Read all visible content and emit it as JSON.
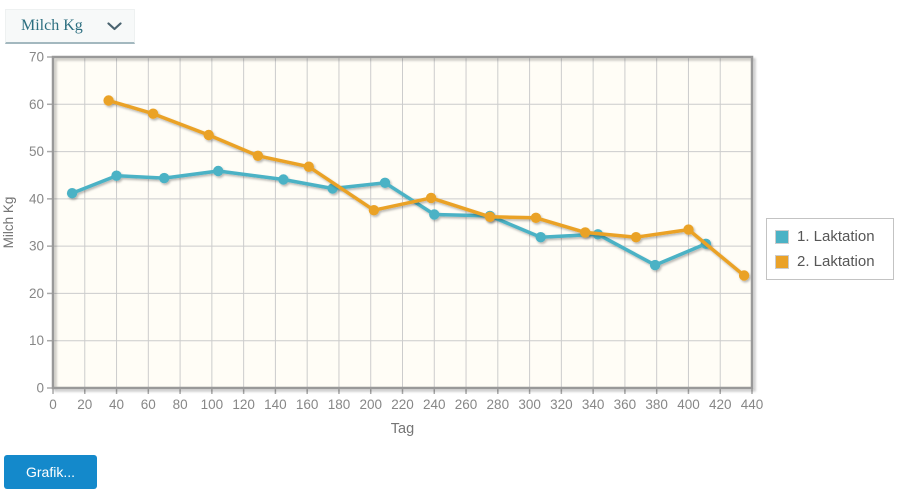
{
  "dropdown": {
    "value": "Milch Kg"
  },
  "button": {
    "label": "Grafik...",
    "color": "#1489cb"
  },
  "legend": {
    "position": "right-outside",
    "items": [
      {
        "label": "1. Laktation",
        "color": "#4bb2c5"
      },
      {
        "label": "2. Laktation",
        "color": "#eaa228"
      }
    ]
  },
  "chart_data": {
    "type": "line",
    "title": "",
    "xlabel": "Tag",
    "ylabel": "Milch Kg",
    "xlim": [
      0,
      440
    ],
    "ylim": [
      0,
      70
    ],
    "xticks": [
      0,
      20,
      40,
      60,
      80,
      100,
      120,
      140,
      160,
      180,
      200,
      220,
      240,
      260,
      280,
      300,
      320,
      340,
      360,
      380,
      400,
      420,
      440
    ],
    "yticks": [
      0,
      10,
      20,
      30,
      40,
      50,
      60,
      70
    ],
    "grid": true,
    "plot_background": "#fffdf6",
    "gridline_color": "#cccccc",
    "border_color": "#999999",
    "tick_label_color": "#878787",
    "axis_title_color": "#757575",
    "series": [
      {
        "name": "1. Laktation",
        "color": "#4bb2c5",
        "points": [
          [
            12,
            41.2
          ],
          [
            40,
            44.9
          ],
          [
            70,
            44.4
          ],
          [
            104,
            45.9
          ],
          [
            145,
            44.1
          ],
          [
            176,
            42.2
          ],
          [
            209,
            43.4
          ],
          [
            240,
            36.7
          ],
          [
            275,
            36.4
          ],
          [
            307,
            31.9
          ],
          [
            343,
            32.5
          ],
          [
            379,
            26.0
          ],
          [
            411,
            30.5
          ]
        ]
      },
      {
        "name": "2. Laktation",
        "color": "#eaa228",
        "points": [
          [
            35,
            60.8
          ],
          [
            63,
            58.0
          ],
          [
            98,
            53.5
          ],
          [
            129,
            49.1
          ],
          [
            161,
            46.8
          ],
          [
            202,
            37.6
          ],
          [
            238,
            40.2
          ],
          [
            275,
            36.2
          ],
          [
            304,
            36.0
          ],
          [
            335,
            32.9
          ],
          [
            367,
            31.9
          ],
          [
            400,
            33.5
          ],
          [
            435,
            23.8
          ]
        ]
      }
    ]
  }
}
